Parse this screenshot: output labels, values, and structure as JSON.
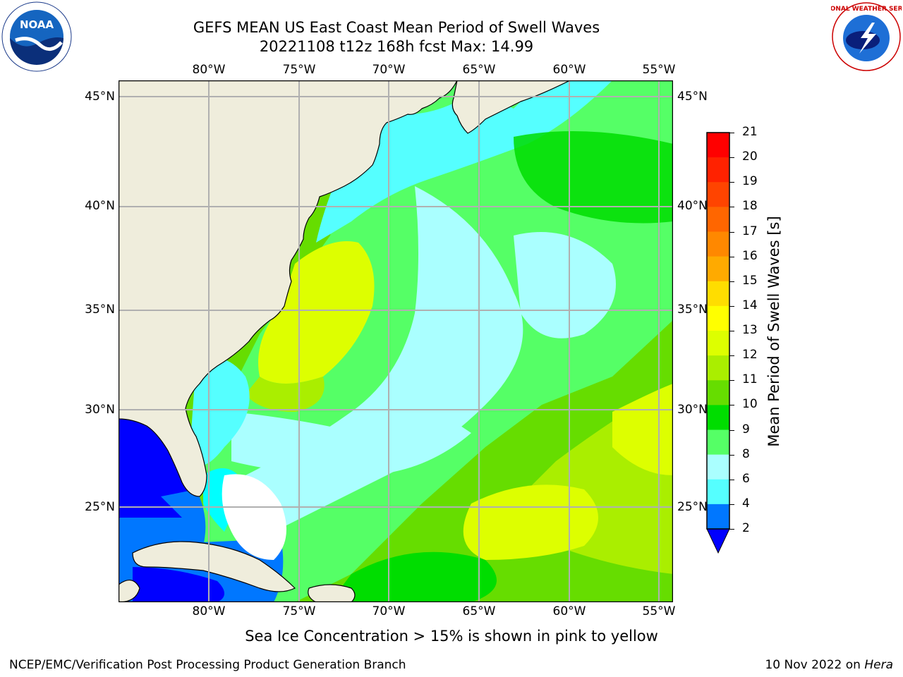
{
  "header": {
    "title_line1": "GEFS MEAN US East Coast Mean Period of Swell Waves",
    "title_line2": "20221108 t12z 168h fcst   Max: 14.99"
  },
  "map": {
    "longitude_labels": [
      "80°W",
      "75°W",
      "70°W",
      "65°W",
      "60°W",
      "55°W"
    ],
    "latitude_labels_left": [
      "45°N",
      "40°N",
      "35°N",
      "30°N",
      "25°N"
    ],
    "latitude_labels_right": [
      "45°N",
      "40°N",
      "35°N",
      "30°N",
      "25°N"
    ],
    "land_color": "#efeddc",
    "grid_color": "#b0b0b0",
    "extent": {
      "lon": [
        -85,
        -54.5
      ],
      "lat": [
        20.5,
        46
      ]
    }
  },
  "colorbar": {
    "label": "Mean Period of Swell Waves [s]",
    "ticks": [
      "21",
      "20",
      "19",
      "18",
      "17",
      "16",
      "15",
      "14",
      "13",
      "12",
      "11",
      "10",
      "9",
      "8",
      "6",
      "4",
      "2"
    ],
    "colors_top_to_bottom": [
      "#ff0000",
      "#ff2200",
      "#ff4400",
      "#ff6600",
      "#ff8800",
      "#ffaa00",
      "#ffdd00",
      "#ffff00",
      "#ddff00",
      "#aaee00",
      "#66dd00",
      "#00dd00",
      "#55ff66",
      "#aaffff",
      "#55ffff",
      "#00ffff",
      "#0077ff"
    ],
    "extend_color": "#0000ff"
  },
  "footer": {
    "caption": "Sea Ice Concentration > 15% is shown in pink to yellow",
    "credit": "NCEP/EMC/Verification Post Processing Product Generation Branch",
    "date": "10 Nov 2022 on ",
    "host": "Hera"
  },
  "logos": {
    "noaa_text": "NOAA",
    "nws_text": "NATIONAL WEATHER SERVICE"
  }
}
